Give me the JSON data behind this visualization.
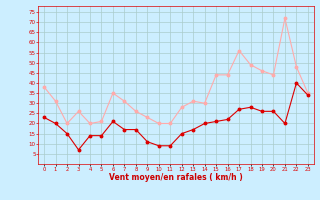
{
  "hours": [
    0,
    1,
    2,
    3,
    4,
    5,
    6,
    7,
    8,
    9,
    10,
    11,
    12,
    13,
    14,
    15,
    16,
    17,
    18,
    19,
    20,
    21,
    22,
    23
  ],
  "wind_mean": [
    23,
    20,
    15,
    7,
    14,
    14,
    21,
    17,
    17,
    11,
    9,
    9,
    15,
    17,
    20,
    21,
    22,
    27,
    28,
    26,
    26,
    20,
    40,
    34
  ],
  "wind_gust": [
    38,
    31,
    20,
    26,
    20,
    21,
    35,
    31,
    26,
    23,
    20,
    20,
    28,
    31,
    30,
    44,
    44,
    56,
    49,
    46,
    44,
    72,
    48,
    35
  ],
  "bg_color": "#cceeff",
  "grid_color": "#aacccc",
  "mean_color": "#dd0000",
  "gust_color": "#ffaaaa",
  "xlabel": "Vent moyen/en rafales ( km/h )",
  "xlabel_color": "#cc0000",
  "yticks": [
    5,
    10,
    15,
    20,
    25,
    30,
    35,
    40,
    45,
    50,
    55,
    60,
    65,
    70,
    75
  ],
  "ylim": [
    0,
    78
  ],
  "xlim": [
    -0.5,
    23.5
  ]
}
